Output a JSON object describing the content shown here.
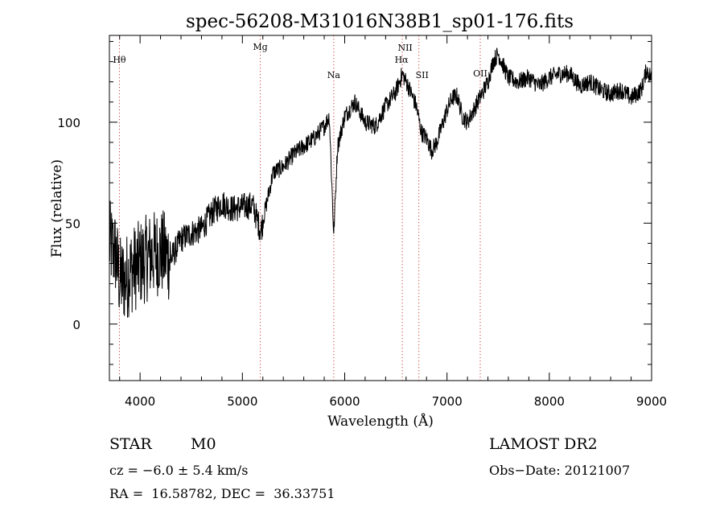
{
  "chart_data": {
    "type": "line",
    "title": "spec-56208-M31016N38B1_sp01-176.fits",
    "xlabel": "Wavelength (Å)",
    "ylabel": "Flux (relative)",
    "xlim": [
      3700,
      9000
    ],
    "ylim": [
      -28,
      143
    ],
    "x_ticks": [
      4000,
      5000,
      6000,
      7000,
      8000,
      9000
    ],
    "y_ticks": [
      0,
      50,
      100
    ],
    "grid": false,
    "series": [
      {
        "color": "#000000",
        "anchors": [
          [
            3700,
            40
          ],
          [
            3760,
            35
          ],
          [
            3800,
            22
          ],
          [
            3850,
            22
          ],
          [
            3900,
            26
          ],
          [
            4000,
            30
          ],
          [
            4100,
            34
          ],
          [
            4200,
            36
          ],
          [
            4300,
            32
          ],
          [
            4400,
            42
          ],
          [
            4500,
            45
          ],
          [
            4600,
            47
          ],
          [
            4700,
            55
          ],
          [
            4800,
            60
          ],
          [
            4900,
            57
          ],
          [
            5000,
            58
          ],
          [
            5100,
            59
          ],
          [
            5180,
            46
          ],
          [
            5250,
            63
          ],
          [
            5300,
            75
          ],
          [
            5400,
            78
          ],
          [
            5500,
            84
          ],
          [
            5600,
            88
          ],
          [
            5700,
            92
          ],
          [
            5800,
            98
          ],
          [
            5850,
            103
          ],
          [
            5893,
            44
          ],
          [
            5930,
            88
          ],
          [
            6000,
            103
          ],
          [
            6100,
            110
          ],
          [
            6200,
            100
          ],
          [
            6300,
            98
          ],
          [
            6400,
            108
          ],
          [
            6500,
            115
          ],
          [
            6563,
            124
          ],
          [
            6620,
            118
          ],
          [
            6700,
            108
          ],
          [
            6750,
            95
          ],
          [
            6800,
            92
          ],
          [
            6850,
            86
          ],
          [
            6900,
            90
          ],
          [
            7000,
            106
          ],
          [
            7050,
            112
          ],
          [
            7100,
            113
          ],
          [
            7150,
            103
          ],
          [
            7200,
            100
          ],
          [
            7300,
            110
          ],
          [
            7400,
            120
          ],
          [
            7450,
            130
          ],
          [
            7500,
            134
          ],
          [
            7600,
            122
          ],
          [
            7700,
            120
          ],
          [
            7800,
            122
          ],
          [
            7900,
            118
          ],
          [
            8000,
            122
          ],
          [
            8100,
            124
          ],
          [
            8200,
            124
          ],
          [
            8300,
            118
          ],
          [
            8400,
            120
          ],
          [
            8500,
            116
          ],
          [
            8600,
            114
          ],
          [
            8700,
            116
          ],
          [
            8800,
            112
          ],
          [
            8900,
            116
          ],
          [
            8950,
            126
          ],
          [
            9000,
            122
          ]
        ]
      }
    ],
    "lines": [
      {
        "label": "Hθ",
        "wavelength": 3798
      },
      {
        "label": "Mg",
        "wavelength": 5175
      },
      {
        "label": "Na",
        "wavelength": 5893
      },
      {
        "label": "NII",
        "wavelength": 6583
      },
      {
        "label": "Hα",
        "wavelength": 6563
      },
      {
        "label": "SII",
        "wavelength": 6725
      },
      {
        "label": "OII",
        "wavelength": 7325
      }
    ],
    "line_color": "#d04040"
  },
  "info": {
    "class": "STAR",
    "subclass": "M0",
    "survey": "LAMOST DR2",
    "redshift": "cz = −6.0 ± 5.4 km/s",
    "obs_date": "Obs−Date: 20121007",
    "coords": "RA =  16.58782, DEC =  36.33751"
  }
}
